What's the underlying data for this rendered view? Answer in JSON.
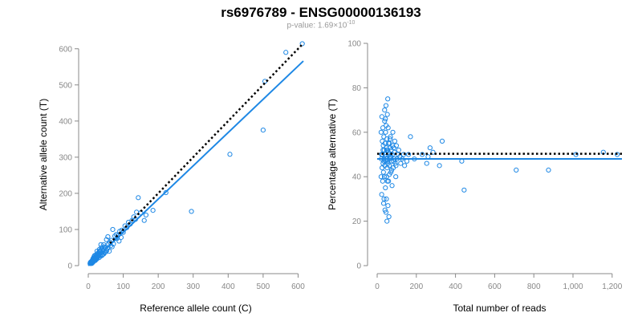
{
  "header": {
    "title": "rs6976789 - ENSG00000136193",
    "pvalue_prefix": "p-value: 1.69×10",
    "pvalue_exponent": "-10"
  },
  "colors": {
    "points": "#1e88e5",
    "fit": "#1e88e5",
    "reference": "#000000",
    "axis": "#888888"
  },
  "chart_data": [
    {
      "type": "scatter",
      "xlabel": "Reference allele count (C)",
      "ylabel": "Alternative allele count (T)",
      "xlim": [
        0,
        615
      ],
      "ylim": [
        0,
        615
      ],
      "xticks": [
        0,
        100,
        200,
        300,
        400,
        500,
        600
      ],
      "yticks": [
        0,
        100,
        200,
        300,
        400,
        500,
        600
      ],
      "x_tick_labels": [
        "0",
        "100",
        "200",
        "300",
        "400",
        "500",
        "600"
      ],
      "y_tick_labels": [
        "0",
        "100",
        "200",
        "300",
        "400",
        "500",
        "600"
      ],
      "reference_line": {
        "style": "dotted",
        "x": [
          62,
          615
        ],
        "y": [
          62,
          615
        ]
      },
      "fit_line": {
        "x": [
          0,
          615
        ],
        "y": [
          0,
          566
        ]
      },
      "points": [
        [
          612,
          614
        ],
        [
          565,
          590
        ],
        [
          505,
          510
        ],
        [
          500,
          375
        ],
        [
          405,
          308
        ],
        [
          295,
          150
        ],
        [
          222,
          202
        ],
        [
          185,
          153
        ],
        [
          165,
          140
        ],
        [
          160,
          125
        ],
        [
          150,
          146
        ],
        [
          143,
          188
        ],
        [
          138,
          148
        ],
        [
          130,
          135
        ],
        [
          125,
          125
        ],
        [
          115,
          120
        ],
        [
          105,
          110
        ],
        [
          96,
          98
        ],
        [
          90,
          95
        ],
        [
          85,
          83
        ],
        [
          80,
          86
        ],
        [
          76,
          82
        ],
        [
          70,
          100
        ],
        [
          66,
          70
        ],
        [
          62,
          65
        ],
        [
          58,
          60
        ],
        [
          56,
          80
        ],
        [
          52,
          72
        ],
        [
          48,
          50
        ],
        [
          46,
          45
        ],
        [
          45,
          52
        ],
        [
          42,
          40
        ],
        [
          40,
          46
        ],
        [
          38,
          35
        ],
        [
          36,
          58
        ],
        [
          34,
          30
        ],
        [
          33,
          40
        ],
        [
          32,
          45
        ],
        [
          30,
          28
        ],
        [
          29,
          32
        ],
        [
          28,
          35
        ],
        [
          27,
          25
        ],
        [
          26,
          22
        ],
        [
          25,
          40
        ],
        [
          24,
          28
        ],
        [
          23,
          20
        ],
        [
          22,
          30
        ],
        [
          21,
          18
        ],
        [
          20,
          24
        ],
        [
          19,
          15
        ],
        [
          18,
          22
        ],
        [
          18,
          28
        ],
        [
          17,
          20
        ],
        [
          16,
          14
        ],
        [
          16,
          24
        ],
        [
          15,
          18
        ],
        [
          15,
          12
        ],
        [
          14,
          20
        ],
        [
          14,
          16
        ],
        [
          13,
          12
        ],
        [
          13,
          18
        ],
        [
          12,
          10
        ],
        [
          12,
          15
        ],
        [
          11,
          13
        ],
        [
          11,
          9
        ],
        [
          10,
          12
        ],
        [
          10,
          8
        ],
        [
          9,
          10
        ],
        [
          9,
          7
        ],
        [
          8,
          9
        ],
        [
          8,
          11
        ],
        [
          7,
          8
        ],
        [
          7,
          6
        ],
        [
          6,
          7
        ],
        [
          6,
          9
        ],
        [
          5,
          6
        ],
        [
          60,
          40
        ],
        [
          55,
          48
        ],
        [
          50,
          38
        ],
        [
          44,
          32
        ],
        [
          40,
          30
        ],
        [
          35,
          26
        ],
        [
          31,
          22
        ],
        [
          24,
          18
        ],
        [
          20,
          14
        ],
        [
          72,
          60
        ],
        [
          68,
          52
        ],
        [
          64,
          55
        ],
        [
          53,
          42
        ],
        [
          47,
          36
        ],
        [
          39,
          28
        ],
        [
          35,
          42
        ],
        [
          29,
          36
        ],
        [
          26,
          30
        ],
        [
          22,
          26
        ],
        [
          19,
          22
        ],
        [
          17,
          16
        ],
        [
          14,
          10
        ],
        [
          12,
          8
        ],
        [
          10,
          6
        ],
        [
          88,
          68
        ],
        [
          82,
          75
        ],
        [
          94,
          78
        ],
        [
          100,
          92
        ],
        [
          110,
          105
        ],
        [
          120,
          115
        ],
        [
          135,
          128
        ],
        [
          44,
          58
        ],
        [
          38,
          50
        ],
        [
          32,
          38
        ]
      ]
    },
    {
      "type": "scatter",
      "xlabel": "Total number of reads",
      "ylabel": "Percentage alternative (T)",
      "xlim": [
        0,
        1250
      ],
      "ylim": [
        0,
        100
      ],
      "xticks": [
        0,
        200,
        400,
        600,
        800,
        1000,
        1200
      ],
      "yticks": [
        0,
        20,
        40,
        60,
        80,
        100
      ],
      "x_tick_labels": [
        "0",
        "200",
        "400",
        "600",
        "800",
        "1,000",
        "1,200"
      ],
      "y_tick_labels": [
        "0",
        "20",
        "40",
        "60",
        "80",
        "100"
      ],
      "reference_line": {
        "style": "dotted",
        "x": [
          0,
          1250
        ],
        "y": [
          50.3,
          50.3
        ]
      },
      "fit_line": {
        "x": [
          0,
          1250
        ],
        "y": [
          48,
          48
        ]
      },
      "points": [
        [
          1226,
          50
        ],
        [
          1155,
          51
        ],
        [
          1015,
          50
        ],
        [
          875,
          43
        ],
        [
          710,
          43
        ],
        [
          444,
          34
        ],
        [
          432,
          47
        ],
        [
          332,
          56
        ],
        [
          318,
          45
        ],
        [
          285,
          51
        ],
        [
          270,
          53
        ],
        [
          260,
          49
        ],
        [
          253,
          46
        ],
        [
          230,
          50
        ],
        [
          190,
          48
        ],
        [
          170,
          58
        ],
        [
          160,
          50
        ],
        [
          152,
          47
        ],
        [
          140,
          45
        ],
        [
          128,
          48
        ],
        [
          115,
          49
        ],
        [
          110,
          52
        ],
        [
          105,
          50
        ],
        [
          98,
          54
        ],
        [
          95,
          40
        ],
        [
          92,
          46
        ],
        [
          90,
          56
        ],
        [
          88,
          48
        ],
        [
          85,
          53
        ],
        [
          82,
          44
        ],
        [
          80,
          60
        ],
        [
          78,
          50
        ],
        [
          76,
          36
        ],
        [
          74,
          47
        ],
        [
          72,
          52
        ],
        [
          70,
          42
        ],
        [
          68,
          58
        ],
        [
          66,
          49
        ],
        [
          64,
          55
        ],
        [
          62,
          45
        ],
        [
          60,
          50
        ],
        [
          58,
          38
        ],
        [
          56,
          62
        ],
        [
          55,
          46
        ],
        [
          54,
          75
        ],
        [
          53,
          52
        ],
        [
          52,
          68
        ],
        [
          51,
          44
        ],
        [
          50,
          57
        ],
        [
          49,
          48
        ],
        [
          48,
          40
        ],
        [
          47,
          30
        ],
        [
          46,
          53
        ],
        [
          45,
          72
        ],
        [
          44,
          47
        ],
        [
          43,
          60
        ],
        [
          42,
          35
        ],
        [
          41,
          50
        ],
        [
          40,
          55
        ],
        [
          39,
          45
        ],
        [
          38,
          65
        ],
        [
          37,
          40
        ],
        [
          36,
          52
        ],
        [
          35,
          48
        ],
        [
          34,
          58
        ],
        [
          33,
          28
        ],
        [
          32,
          42
        ],
        [
          31,
          54
        ],
        [
          30,
          46
        ],
        [
          29,
          62
        ],
        [
          28,
          38
        ],
        [
          27,
          50
        ],
        [
          26,
          56
        ],
        [
          25,
          44
        ],
        [
          24,
          67
        ],
        [
          23,
          32
        ],
        [
          22,
          50
        ],
        [
          21,
          48
        ],
        [
          20,
          60
        ],
        [
          20,
          40
        ],
        [
          35,
          30
        ],
        [
          40,
          25
        ],
        [
          45,
          24
        ],
        [
          50,
          20
        ],
        [
          55,
          27
        ],
        [
          60,
          22
        ],
        [
          38,
          70
        ],
        [
          42,
          66
        ],
        [
          46,
          63
        ],
        [
          52,
          38
        ],
        [
          58,
          55
        ],
        [
          62,
          41
        ],
        [
          66,
          57
        ],
        [
          70,
          49
        ],
        [
          74,
          43
        ],
        [
          78,
          54
        ],
        [
          84,
          47
        ],
        [
          88,
          51
        ],
        [
          96,
          45
        ],
        [
          102,
          48
        ],
        [
          120,
          46
        ],
        [
          135,
          50
        ],
        [
          30,
          52
        ],
        [
          34,
          47
        ],
        [
          44,
          49
        ],
        [
          48,
          52
        ],
        [
          53,
          47
        ],
        [
          57,
          51
        ],
        [
          63,
          48
        ],
        [
          67,
          53
        ]
      ]
    }
  ]
}
